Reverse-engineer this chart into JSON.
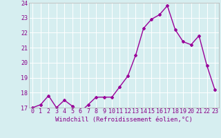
{
  "x": [
    0,
    1,
    2,
    3,
    4,
    5,
    6,
    7,
    8,
    9,
    10,
    11,
    12,
    13,
    14,
    15,
    16,
    17,
    18,
    19,
    20,
    21,
    22,
    23
  ],
  "y": [
    17.0,
    17.2,
    17.8,
    17.0,
    17.5,
    17.1,
    16.7,
    17.2,
    17.7,
    17.7,
    17.7,
    18.4,
    19.1,
    20.5,
    22.3,
    22.9,
    23.2,
    23.8,
    22.2,
    21.4,
    21.2,
    21.8,
    19.8,
    18.2
  ],
  "ylim": [
    17,
    24
  ],
  "yticks": [
    17,
    18,
    19,
    20,
    21,
    22,
    23,
    24
  ],
  "xticks": [
    0,
    1,
    2,
    3,
    4,
    5,
    6,
    7,
    8,
    9,
    10,
    11,
    12,
    13,
    14,
    15,
    16,
    17,
    18,
    19,
    20,
    21,
    22,
    23
  ],
  "line_color": "#990099",
  "marker": "D",
  "marker_size": 2.0,
  "line_width": 1.0,
  "background_color": "#d6eef0",
  "grid_color": "#ffffff",
  "xlabel": "Windchill (Refroidissement éolien,°C)",
  "xlabel_fontsize": 6.5,
  "tick_fontsize": 6.0,
  "tick_color": "#880088",
  "xlabel_color": "#880088"
}
